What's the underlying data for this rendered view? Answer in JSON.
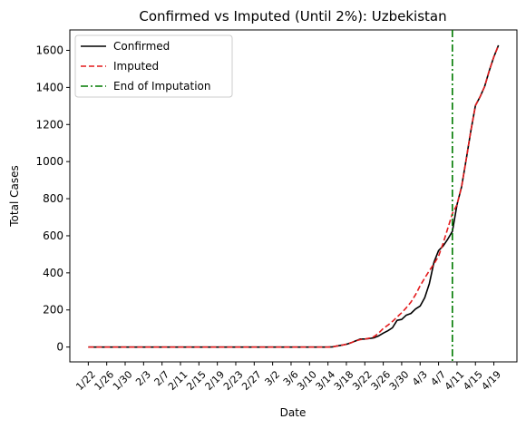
{
  "chart_data": {
    "type": "line",
    "title": "Confirmed vs Imputed (Until 2%): Uzbekistan",
    "xlabel": "Date",
    "ylabel": "Total Cases",
    "x_ticks": [
      "1/22",
      "1/26",
      "1/30",
      "2/3",
      "2/7",
      "2/11",
      "2/15",
      "2/19",
      "2/23",
      "2/27",
      "3/2",
      "3/6",
      "3/10",
      "3/14",
      "3/18",
      "3/22",
      "3/26",
      "3/30",
      "4/3",
      "4/7",
      "4/11",
      "4/15",
      "4/19"
    ],
    "y_ticks": [
      0,
      200,
      400,
      600,
      800,
      1000,
      1200,
      1400,
      1600
    ],
    "ylim": [
      -80,
      1710
    ],
    "grid": false,
    "legend_position": "upper-left",
    "end_of_imputation_date": "4/10",
    "series": [
      {
        "name": "Confirmed",
        "color": "#000000",
        "style": "solid",
        "points": [
          [
            "1/22",
            0
          ],
          [
            "3/2",
            0
          ],
          [
            "3/14",
            0
          ],
          [
            "3/15",
            1
          ],
          [
            "3/16",
            6
          ],
          [
            "3/17",
            10
          ],
          [
            "3/18",
            15
          ],
          [
            "3/19",
            23
          ],
          [
            "3/20",
            33
          ],
          [
            "3/21",
            43
          ],
          [
            "3/22",
            43
          ],
          [
            "3/23",
            46
          ],
          [
            "3/24",
            50
          ],
          [
            "3/25",
            60
          ],
          [
            "3/26",
            75
          ],
          [
            "3/27",
            88
          ],
          [
            "3/28",
            104
          ],
          [
            "3/29",
            144
          ],
          [
            "3/30",
            149
          ],
          [
            "3/31",
            172
          ],
          [
            "4/1",
            181
          ],
          [
            "4/2",
            205
          ],
          [
            "4/3",
            221
          ],
          [
            "4/4",
            266
          ],
          [
            "4/5",
            342
          ],
          [
            "4/6",
            457
          ],
          [
            "4/7",
            520
          ],
          [
            "4/8",
            545
          ],
          [
            "4/9",
            582
          ],
          [
            "4/10",
            624
          ],
          [
            "4/11",
            767
          ],
          [
            "4/12",
            865
          ],
          [
            "4/13",
            1012
          ],
          [
            "4/14",
            1165
          ],
          [
            "4/15",
            1302
          ],
          [
            "4/16",
            1349
          ],
          [
            "4/17",
            1405
          ],
          [
            "4/18",
            1490
          ],
          [
            "4/19",
            1565
          ],
          [
            "4/20",
            1627
          ]
        ]
      },
      {
        "name": "Imputed",
        "color": "#e41a1c",
        "style": "dashed",
        "points": [
          [
            "1/22",
            0
          ],
          [
            "3/2",
            0
          ],
          [
            "3/14",
            0
          ],
          [
            "3/15",
            1
          ],
          [
            "3/16",
            6
          ],
          [
            "3/17",
            10
          ],
          [
            "3/18",
            15
          ],
          [
            "3/19",
            23
          ],
          [
            "3/20",
            33
          ],
          [
            "3/21",
            40
          ],
          [
            "3/22",
            43
          ],
          [
            "3/23",
            48
          ],
          [
            "3/24",
            56
          ],
          [
            "3/25",
            75
          ],
          [
            "3/26",
            100
          ],
          [
            "3/27",
            118
          ],
          [
            "3/28",
            138
          ],
          [
            "3/29",
            162
          ],
          [
            "3/30",
            185
          ],
          [
            "3/31",
            212
          ],
          [
            "4/1",
            242
          ],
          [
            "4/2",
            282
          ],
          [
            "4/3",
            330
          ],
          [
            "4/4",
            372
          ],
          [
            "4/5",
            412
          ],
          [
            "4/6",
            448
          ],
          [
            "4/7",
            490
          ],
          [
            "4/8",
            560
          ],
          [
            "4/9",
            640
          ],
          [
            "4/10",
            720
          ],
          [
            "4/11",
            767
          ],
          [
            "4/12",
            865
          ],
          [
            "4/13",
            1012
          ],
          [
            "4/14",
            1165
          ],
          [
            "4/15",
            1302
          ],
          [
            "4/16",
            1349
          ],
          [
            "4/17",
            1405
          ],
          [
            "4/18",
            1490
          ],
          [
            "4/19",
            1565
          ],
          [
            "4/20",
            1627
          ]
        ]
      },
      {
        "name": "End of Imputation",
        "color": "#007a00",
        "style": "dashdot"
      }
    ]
  }
}
